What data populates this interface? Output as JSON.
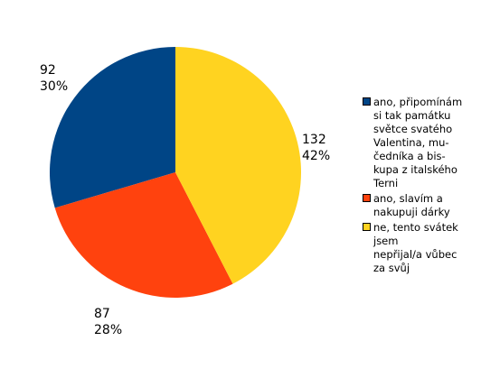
{
  "chart_data": {
    "type": "pie",
    "title": "",
    "start_angle_deg": 0,
    "direction": "clockwise",
    "series": [
      {
        "name": "ano, připomínám si tak památku světce svatého Valentina, mučedníka a biskupa z italského Terni",
        "legend_text": "ano, připomínám\nsi tak památku\nsvětce svatého\nValentina, mu-\nčedníka a bis-\nkupa z italského\nTerni",
        "value": 92,
        "percent_label": "30%",
        "color": "#004586"
      },
      {
        "name": "ano, slavím a nakupuji dárky",
        "legend_text": "ano,  slavím a\nnakupuji dárky",
        "value": 87,
        "percent_label": "28%",
        "color": "#ff420e"
      },
      {
        "name": "ne, tento svátek jsem nepřijal/a vůbec za svůj",
        "legend_text": "ne,  tento svátek\njsem\nnepřijal/a  vůbec\nza svůj",
        "value": 132,
        "percent_label": "42%",
        "color": "#ffd320"
      }
    ],
    "legend_order": [
      0,
      1,
      2
    ],
    "legend_position": "right"
  }
}
